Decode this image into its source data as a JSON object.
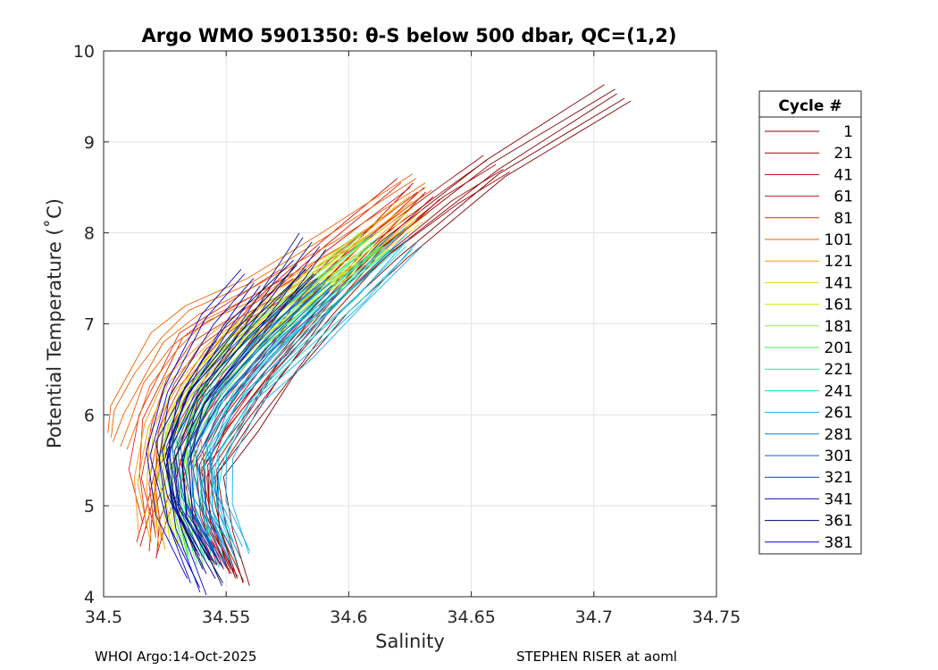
{
  "chart_data": {
    "type": "line",
    "title": "Argo WMO 5901350: θ-S below 500 dbar,  QC=(1,2)",
    "xlabel": "Salinity",
    "ylabel": "Potential Temperature (˚C)",
    "xlim": [
      34.5,
      34.75
    ],
    "ylim": [
      4,
      10
    ],
    "xticks": [
      "34.5",
      "34.55",
      "34.6",
      "34.65",
      "34.7",
      "34.75"
    ],
    "yticks": [
      "4",
      "5",
      "6",
      "7",
      "8",
      "9",
      "10"
    ],
    "grid": true,
    "legend": {
      "title": "Cycle #",
      "position": "right-outside",
      "entries": [
        {
          "label": "1",
          "color": "#800000"
        },
        {
          "label": "21",
          "color": "#a50000"
        },
        {
          "label": "41",
          "color": "#c80000"
        },
        {
          "label": "61",
          "color": "#d51010"
        },
        {
          "label": "81",
          "color": "#e02a0c"
        },
        {
          "label": "101",
          "color": "#f06000"
        },
        {
          "label": "121",
          "color": "#f59a00"
        },
        {
          "label": "141",
          "color": "#f2d000"
        },
        {
          "label": "161",
          "color": "#c8ee10"
        },
        {
          "label": "181",
          "color": "#8cf040"
        },
        {
          "label": "201",
          "color": "#40ee50"
        },
        {
          "label": "221",
          "color": "#20e8a0"
        },
        {
          "label": "241",
          "color": "#10d8d8"
        },
        {
          "label": "261",
          "color": "#10b0f0"
        },
        {
          "label": "281",
          "color": "#0a88d0"
        },
        {
          "label": "301",
          "color": "#0860d8"
        },
        {
          "label": "321",
          "color": "#0840c0"
        },
        {
          "label": "341",
          "color": "#0a1aa0"
        },
        {
          "label": "361",
          "color": "#000070"
        },
        {
          "label": "381",
          "color": "#0000d0"
        }
      ]
    },
    "series": [
      {
        "name": "1",
        "color": "#800000",
        "x": [
          34.555,
          34.547,
          34.545,
          34.558,
          34.574,
          34.595,
          34.618,
          34.66,
          34.71
        ],
        "y": [
          4.2,
          4.8,
          5.4,
          5.9,
          6.5,
          7.2,
          7.8,
          8.7,
          9.53
        ]
      },
      {
        "name": "21",
        "color": "#a50000",
        "x": [
          34.552,
          34.544,
          34.541,
          34.552,
          34.568,
          34.589,
          34.611,
          34.64,
          34.66
        ],
        "y": [
          4.25,
          4.8,
          5.4,
          5.9,
          6.5,
          7.2,
          7.8,
          8.4,
          8.75
        ]
      },
      {
        "name": "41",
        "color": "#c80000",
        "x": [
          34.549,
          34.54,
          34.537,
          34.546,
          34.563,
          34.586,
          34.607,
          34.632
        ],
        "y": [
          4.3,
          4.8,
          5.4,
          5.9,
          6.5,
          7.2,
          7.8,
          8.45
        ]
      },
      {
        "name": "61",
        "color": "#d51010",
        "x": [
          34.518,
          34.521,
          34.527,
          34.534,
          34.546,
          34.568,
          34.592,
          34.625
        ],
        "y": [
          4.5,
          4.9,
          5.4,
          5.9,
          6.5,
          7.2,
          7.8,
          8.5
        ]
      },
      {
        "name": "81",
        "color": "#e02a0c",
        "x": [
          34.52,
          34.516,
          34.519,
          34.527,
          34.536,
          34.553,
          34.578
        ],
        "y": [
          4.7,
          5.3,
          5.9,
          6.4,
          6.8,
          7.1,
          7.5
        ]
      },
      {
        "name": "101",
        "color": "#f06000",
        "x": [
          34.505,
          34.508,
          34.515,
          34.525,
          34.538,
          34.562,
          34.594,
          34.63
        ],
        "y": [
          5.7,
          6.0,
          6.4,
          6.8,
          7.1,
          7.4,
          7.9,
          8.55
        ]
      },
      {
        "name": "121",
        "color": "#f59a00",
        "x": [
          34.52,
          34.517,
          34.52,
          34.53,
          34.548,
          34.575,
          34.605,
          34.628
        ],
        "y": [
          4.6,
          5.2,
          5.8,
          6.3,
          6.8,
          7.3,
          7.8,
          8.3
        ]
      },
      {
        "name": "141",
        "color": "#f2d000",
        "x": [
          34.527,
          34.523,
          34.526,
          34.536,
          34.553,
          34.578,
          34.607,
          34.625
        ],
        "y": [
          4.6,
          5.2,
          5.8,
          6.3,
          6.8,
          7.3,
          7.8,
          8.2
        ]
      },
      {
        "name": "161",
        "color": "#c8ee10",
        "x": [
          34.53,
          34.526,
          34.529,
          34.539,
          34.556,
          34.58,
          34.608
        ],
        "y": [
          4.6,
          5.2,
          5.8,
          6.3,
          6.8,
          7.3,
          7.9
        ]
      },
      {
        "name": "181",
        "color": "#8cf040",
        "x": [
          34.533,
          34.528,
          34.531,
          34.541,
          34.558,
          34.582,
          34.61
        ],
        "y": [
          4.5,
          5.2,
          5.8,
          6.3,
          6.8,
          7.3,
          7.9
        ]
      },
      {
        "name": "201",
        "color": "#40ee50",
        "x": [
          34.536,
          34.531,
          34.533,
          34.543,
          34.56,
          34.584,
          34.611
        ],
        "y": [
          4.4,
          5.2,
          5.8,
          6.3,
          6.8,
          7.3,
          7.9
        ]
      },
      {
        "name": "221",
        "color": "#20e8a0",
        "x": [
          34.542,
          34.536,
          34.538,
          34.548,
          34.565,
          34.589,
          34.615
        ],
        "y": [
          4.4,
          5.1,
          5.8,
          6.3,
          6.8,
          7.3,
          7.9
        ]
      },
      {
        "name": "241",
        "color": "#10d8d8",
        "x": [
          34.549,
          34.542,
          34.544,
          34.556,
          34.574,
          34.598,
          34.622
        ],
        "y": [
          4.4,
          5.1,
          5.6,
          6.2,
          6.7,
          7.3,
          7.9
        ]
      },
      {
        "name": "261",
        "color": "#10b0f0",
        "x": [
          34.556,
          34.548,
          34.547,
          34.56,
          34.58,
          34.603,
          34.626
        ],
        "y": [
          4.55,
          5.1,
          5.6,
          6.2,
          6.7,
          7.3,
          7.95
        ]
      },
      {
        "name": "281",
        "color": "#0a88d0",
        "x": [
          34.552,
          34.542,
          34.54,
          34.55,
          34.57,
          34.595
        ],
        "y": [
          4.5,
          5.0,
          5.6,
          6.2,
          6.8,
          7.4
        ]
      },
      {
        "name": "301",
        "color": "#0860d8",
        "x": [
          34.548,
          34.537,
          34.534,
          34.545,
          34.566,
          34.59
        ],
        "y": [
          4.4,
          5.0,
          5.6,
          6.2,
          6.8,
          7.4
        ]
      },
      {
        "name": "321",
        "color": "#0840c0",
        "x": [
          34.545,
          34.533,
          34.53,
          34.541,
          34.562,
          34.588
        ],
        "y": [
          4.4,
          5.0,
          5.6,
          6.2,
          6.8,
          7.5
        ]
      },
      {
        "name": "341",
        "color": "#0a1aa0",
        "x": [
          34.543,
          34.53,
          34.527,
          34.538,
          34.559,
          34.585
        ],
        "y": [
          4.4,
          5.0,
          5.6,
          6.2,
          6.9,
          7.9
        ]
      },
      {
        "name": "361",
        "color": "#000070",
        "x": [
          34.545,
          34.532,
          34.529,
          34.537,
          34.556,
          34.582
        ],
        "y": [
          4.2,
          4.9,
          5.5,
          6.2,
          6.9,
          7.6
        ]
      },
      {
        "name": "381",
        "color": "#0000d0",
        "x": [
          34.538,
          34.527,
          34.522,
          34.528,
          34.545,
          34.56
        ],
        "y": [
          4.1,
          4.8,
          5.5,
          6.2,
          7.0,
          7.5
        ]
      }
    ]
  },
  "footer": {
    "left": "WHOI Argo:14-Oct-2025",
    "right": "STEPHEN RISER at aoml"
  }
}
